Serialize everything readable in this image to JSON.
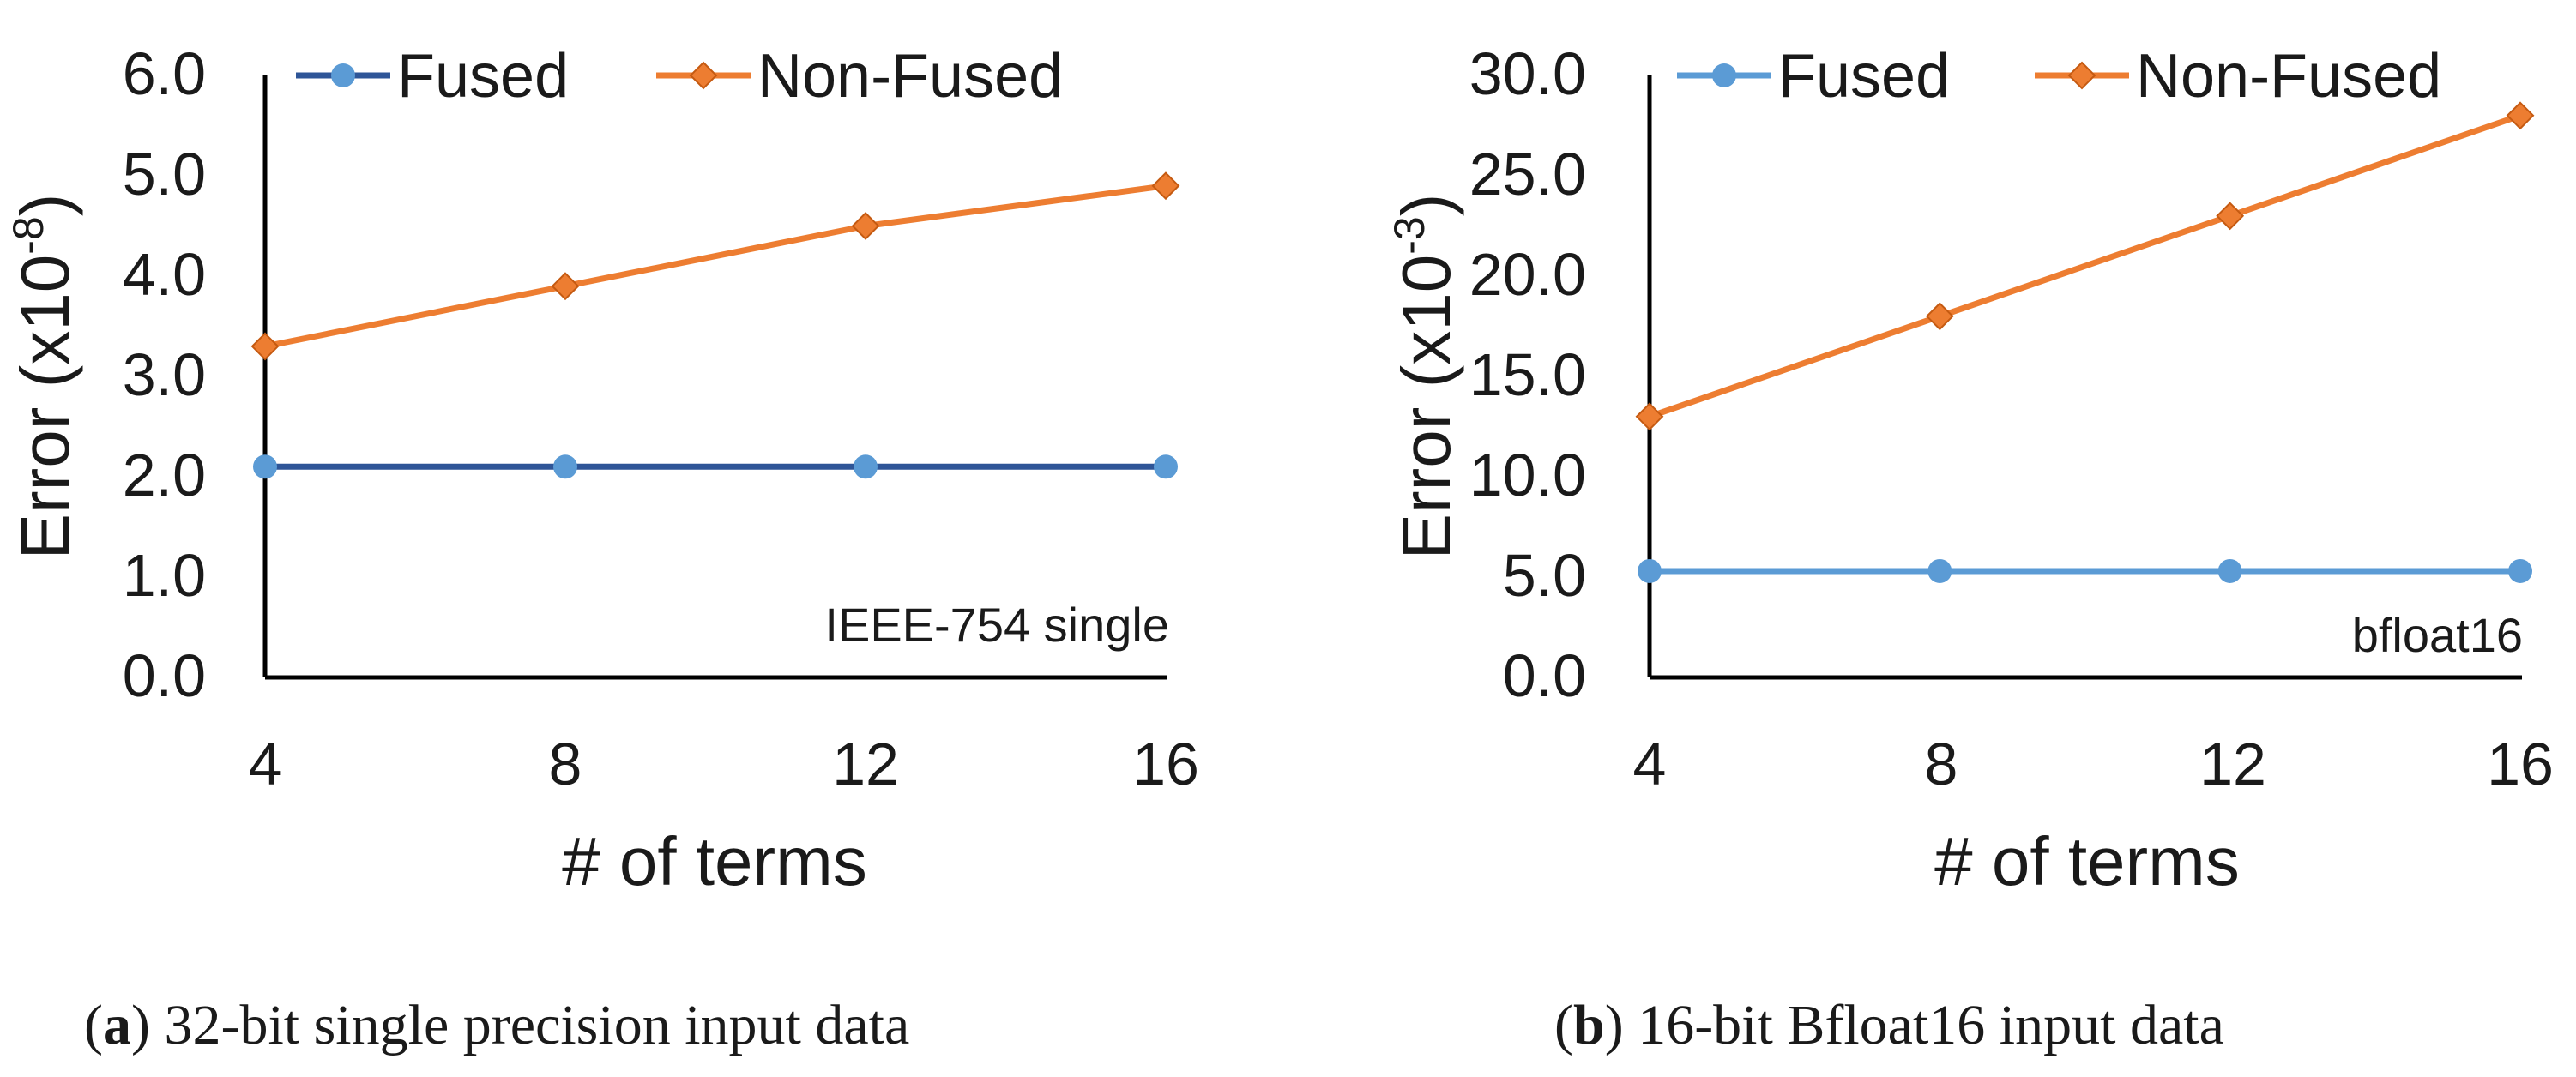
{
  "colors": {
    "fused_a": "#2E5597",
    "fused_b": "#5B9BD5",
    "nonfused": "#ED7D31",
    "axis": "#000000"
  },
  "chart_data": [
    {
      "type": "line",
      "title": "",
      "xlabel": "# of terms",
      "ylabel_main": "Error (x10",
      "ylabel_exp": "-8",
      "ylabel_close": ")",
      "categories": [
        "4",
        "8",
        "12",
        "16"
      ],
      "ylim": [
        0,
        6
      ],
      "yticks": [
        "0.0",
        "1.0",
        "2.0",
        "3.0",
        "4.0",
        "5.0",
        "6.0"
      ],
      "series": [
        {
          "name": "Fused",
          "values": [
            2.1,
            2.1,
            2.1,
            2.1
          ],
          "marker": "circle"
        },
        {
          "name": "Non-Fused",
          "values": [
            3.3,
            3.9,
            4.5,
            4.9
          ],
          "marker": "diamond"
        }
      ],
      "annotation": "IEEE-754 single",
      "legend": "top",
      "caption_letter": "a",
      "caption_text": " 32-bit single precision input data"
    },
    {
      "type": "line",
      "title": "",
      "xlabel": "# of terms",
      "ylabel_main": "Error (x10",
      "ylabel_exp": "-3",
      "ylabel_close": ")",
      "categories": [
        "4",
        "8",
        "12",
        "16"
      ],
      "ylim": [
        0,
        30
      ],
      "yticks": [
        "0.0",
        "5.0",
        "10.0",
        "15.0",
        "20.0",
        "25.0",
        "30.0"
      ],
      "series": [
        {
          "name": "Fused",
          "values": [
            5.3,
            5.3,
            5.3,
            5.3
          ],
          "marker": "circle"
        },
        {
          "name": "Non-Fused",
          "values": [
            13,
            18,
            23,
            28
          ],
          "marker": "diamond"
        }
      ],
      "annotation": "bfloat16",
      "legend": "top",
      "caption_letter": "b",
      "caption_text": " 16-bit Bfloat16 input data"
    }
  ]
}
